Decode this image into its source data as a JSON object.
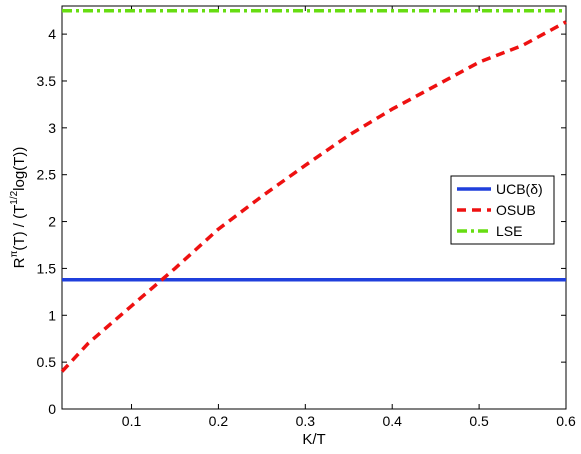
{
  "chart_data": {
    "type": "line",
    "title": "",
    "xlabel": "K/T",
    "ylabel": {
      "base": "R",
      "sup_pi": "π",
      "mid": "(T) / (T",
      "sup_half": "1/2",
      "end": "log(T))"
    },
    "xlim": [
      0.02,
      0.6
    ],
    "ylim": [
      0,
      4.3
    ],
    "xticks": [
      "0.1",
      "0.2",
      "0.3",
      "0.4",
      "0.5",
      "0.6"
    ],
    "xtick_values": [
      0.1,
      0.2,
      0.3,
      0.4,
      0.5,
      0.6
    ],
    "yticks": [
      "0",
      "0.5",
      "1",
      "1.5",
      "2",
      "2.5",
      "3",
      "3.5",
      "4"
    ],
    "ytick_values": [
      0,
      0.5,
      1,
      1.5,
      2,
      2.5,
      3,
      3.5,
      4
    ],
    "legend_position": "center-right",
    "series": [
      {
        "name": "UCB(δ)",
        "color": "#1f3fdc",
        "style": "solid",
        "x": [
          0.02,
          0.6
        ],
        "y": [
          1.38,
          1.38
        ]
      },
      {
        "name": "OSUB",
        "color": "#ee1111",
        "style": "dashed",
        "x": [
          0.02,
          0.05,
          0.1,
          0.15,
          0.2,
          0.25,
          0.3,
          0.35,
          0.4,
          0.45,
          0.5,
          0.55,
          0.6
        ],
        "y": [
          0.4,
          0.7,
          1.1,
          1.5,
          1.92,
          2.27,
          2.6,
          2.92,
          3.2,
          3.45,
          3.7,
          3.88,
          4.13
        ]
      },
      {
        "name": "LSE",
        "color": "#66dd11",
        "style": "dashdot",
        "x": [
          0.02,
          0.6
        ],
        "y": [
          4.25,
          4.25
        ]
      }
    ]
  }
}
